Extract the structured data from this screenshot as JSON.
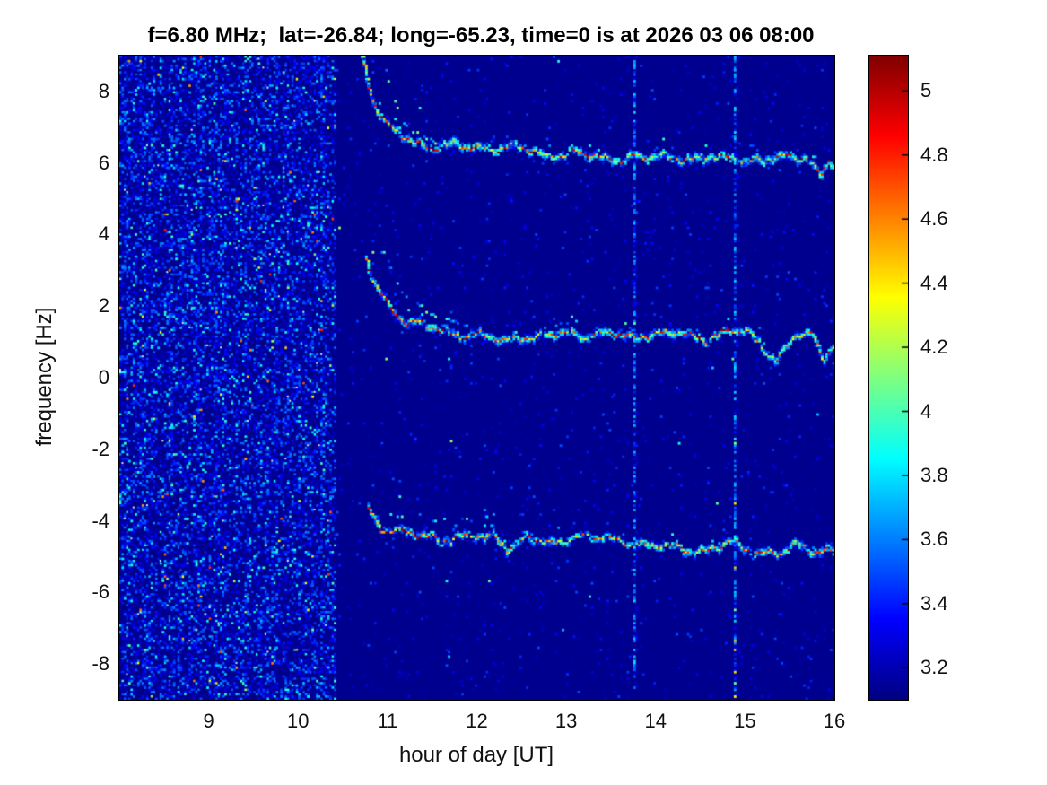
{
  "title": "f=6.80 MHz;  lat=-26.84; long=-65.23, time=0 is at 2026 03 06 08:00",
  "chart_data": {
    "type": "heatmap",
    "title": "f=6.80 MHz;  lat=-26.84; long=-65.23, time=0 is at 2026 03 06 08:00",
    "xlabel": "hour of day [UT]",
    "ylabel": "frequency [Hz]",
    "xlim": [
      8,
      16
    ],
    "ylim": [
      -9,
      9
    ],
    "grid": false,
    "xticks": [
      {
        "label": "9",
        "value": 9
      },
      {
        "label": "10",
        "value": 10
      },
      {
        "label": "11",
        "value": 11
      },
      {
        "label": "12",
        "value": 12
      },
      {
        "label": "13",
        "value": 13
      },
      {
        "label": "14",
        "value": 14
      },
      {
        "label": "15",
        "value": 15
      },
      {
        "label": "16",
        "value": 16
      }
    ],
    "yticks": [
      {
        "label": "8",
        "value": 8
      },
      {
        "label": "6",
        "value": 6
      },
      {
        "label": "4",
        "value": 4
      },
      {
        "label": "2",
        "value": 2
      },
      {
        "label": "0",
        "value": 0
      },
      {
        "label": "-2",
        "value": -2
      },
      {
        "label": "-4",
        "value": -4
      },
      {
        "label": "-6",
        "value": -6
      },
      {
        "label": "-8",
        "value": -8
      }
    ],
    "colorbar": {
      "colormap": "jet",
      "vmin": 3.1,
      "vmax": 5.11,
      "position": "right",
      "ticks": [
        {
          "label": "5",
          "value": 5
        },
        {
          "label": "4.8",
          "value": 4.8
        },
        {
          "label": "4.6",
          "value": 4.6
        },
        {
          "label": "4.4",
          "value": 4.4
        },
        {
          "label": "4.2",
          "value": 4.2
        },
        {
          "label": "4",
          "value": 4
        },
        {
          "label": "3.8",
          "value": 3.8
        },
        {
          "label": "3.6",
          "value": 3.6
        },
        {
          "label": "3.4",
          "value": 3.4
        },
        {
          "label": "3.2",
          "value": 3.2
        }
      ]
    },
    "background_value": 3.13,
    "noise_band": {
      "t_start": 8.0,
      "t_end": 10.45,
      "description": "dense low-level speckle noise before signal onset",
      "value_range": [
        3.1,
        4.1
      ]
    },
    "sparse_speckle_after": {
      "density": 0.03,
      "value_range": [
        3.16,
        3.6
      ]
    },
    "vertical_stripes": [
      {
        "t": 13.77,
        "value_range": [
          3.3,
          3.8
        ]
      },
      {
        "t": 14.88,
        "value_range": [
          3.3,
          4.6
        ]
      }
    ],
    "traces": [
      {
        "name": "upper-doppler-trace",
        "onset": 10.72,
        "wiggle_amp": 0.13,
        "secondary_echo": true,
        "onset_scatter": false,
        "points": [
          [
            10.72,
            8.95
          ],
          [
            10.76,
            8.45
          ],
          [
            10.8,
            8.0
          ],
          [
            10.85,
            7.6
          ],
          [
            10.92,
            7.2
          ],
          [
            11.0,
            6.9
          ],
          [
            11.1,
            6.7
          ],
          [
            11.3,
            6.5
          ],
          [
            11.6,
            6.4
          ],
          [
            12.0,
            6.33
          ],
          [
            12.5,
            6.3
          ],
          [
            13.0,
            6.28
          ],
          [
            13.5,
            6.22
          ],
          [
            14.0,
            6.22
          ],
          [
            14.5,
            6.18
          ],
          [
            14.9,
            6.25
          ],
          [
            15.2,
            6.1
          ],
          [
            15.45,
            6.25
          ],
          [
            15.7,
            6.3
          ],
          [
            15.85,
            5.7
          ],
          [
            15.95,
            6.15
          ],
          [
            16.0,
            5.9
          ]
        ]
      },
      {
        "name": "middle-doppler-trace",
        "onset": 10.75,
        "wiggle_amp": 0.12,
        "secondary_echo": true,
        "onset_scatter": false,
        "points": [
          [
            10.75,
            3.35
          ],
          [
            10.8,
            3.0
          ],
          [
            10.86,
            2.65
          ],
          [
            10.95,
            2.3
          ],
          [
            11.05,
            2.0
          ],
          [
            11.2,
            1.7
          ],
          [
            11.4,
            1.5
          ],
          [
            11.7,
            1.35
          ],
          [
            12.0,
            1.3
          ],
          [
            12.3,
            1.1
          ],
          [
            12.45,
            1.3
          ],
          [
            12.7,
            1.2
          ],
          [
            13.0,
            1.22
          ],
          [
            13.4,
            1.28
          ],
          [
            13.8,
            1.18
          ],
          [
            14.2,
            1.15
          ],
          [
            14.55,
            1.05
          ],
          [
            14.8,
            1.25
          ],
          [
            15.05,
            1.1
          ],
          [
            15.35,
            0.45
          ],
          [
            15.55,
            1.05
          ],
          [
            15.75,
            1.1
          ],
          [
            15.87,
            0.4
          ],
          [
            16.0,
            0.85
          ]
        ]
      },
      {
        "name": "lower-doppler-trace",
        "onset": 10.78,
        "wiggle_amp": 0.12,
        "secondary_echo": false,
        "onset_scatter": true,
        "points": [
          [
            10.78,
            -3.6
          ],
          [
            10.84,
            -3.9
          ],
          [
            10.92,
            -4.15
          ],
          [
            11.05,
            -4.3
          ],
          [
            11.25,
            -4.45
          ],
          [
            11.5,
            -4.45
          ],
          [
            11.75,
            -4.55
          ],
          [
            12.0,
            -4.5
          ],
          [
            12.2,
            -4.4
          ],
          [
            12.35,
            -4.75
          ],
          [
            12.55,
            -4.5
          ],
          [
            12.8,
            -4.6
          ],
          [
            13.05,
            -4.45
          ],
          [
            13.35,
            -4.55
          ],
          [
            13.65,
            -4.5
          ],
          [
            13.95,
            -4.6
          ],
          [
            14.25,
            -4.65
          ],
          [
            14.55,
            -4.75
          ],
          [
            14.85,
            -4.6
          ],
          [
            15.1,
            -4.7
          ],
          [
            15.4,
            -4.85
          ],
          [
            15.6,
            -4.7
          ],
          [
            15.8,
            -4.9
          ],
          [
            16.0,
            -4.95
          ]
        ]
      }
    ]
  }
}
